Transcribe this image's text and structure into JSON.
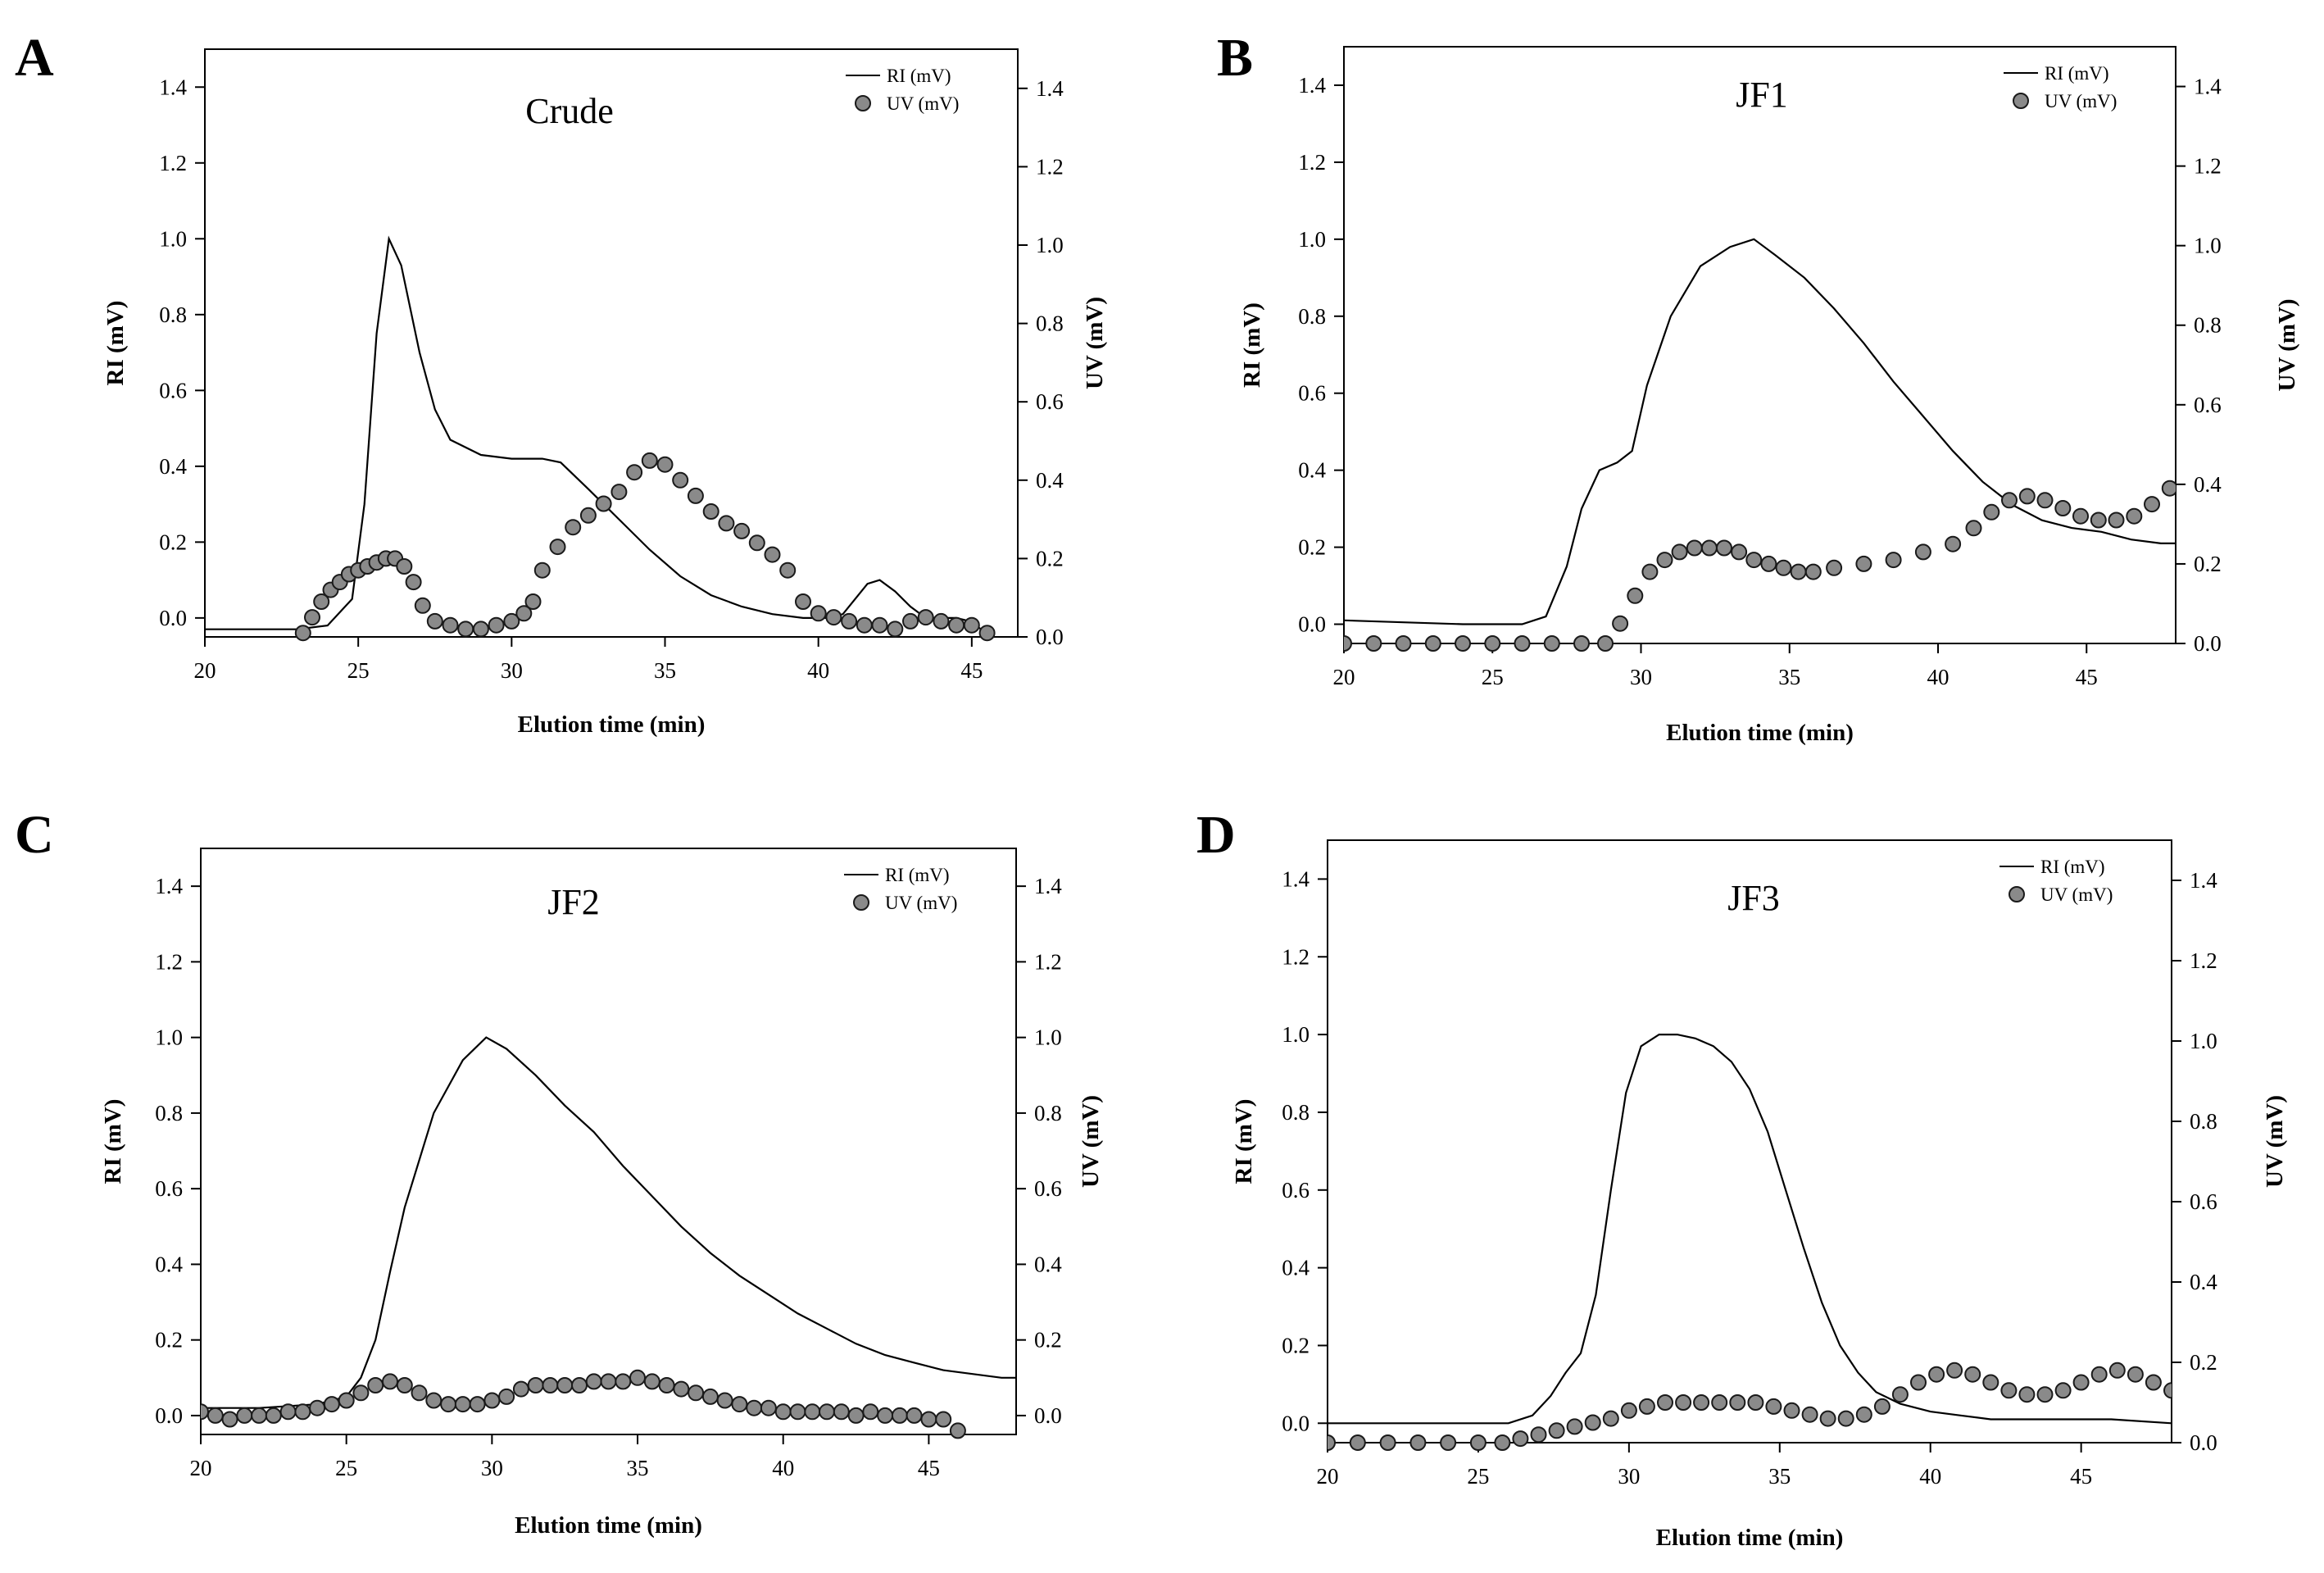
{
  "figure": {
    "legend_labels": [
      "RI (mV)",
      "UV (mV)"
    ]
  },
  "chart_data": [
    {
      "type": "line",
      "panel": "A",
      "title": "Crude",
      "xlabel": "Elution time (min)",
      "ylabel_left": "RI (mV)",
      "ylabel_right": "UV (mV)",
      "xlim": [
        20,
        46.5
      ],
      "ylim_left": [
        -0.05,
        1.5
      ],
      "ylim_right": [
        0,
        1.5
      ],
      "xticks": [
        20,
        25,
        30,
        35,
        40,
        45
      ],
      "yticks_left": [
        "0.0",
        "0.2",
        "0.4",
        "0.6",
        "0.8",
        "1.0",
        "1.2",
        "1.4"
      ],
      "yticks_right": [
        "0.0",
        "0.2",
        "0.4",
        "0.6",
        "0.8",
        "1.0",
        "1.2",
        "1.4"
      ],
      "series": [
        {
          "name": "RI (mV)",
          "style": "line",
          "axis": "left",
          "x": [
            20,
            23,
            24,
            24.8,
            25.2,
            25.6,
            26,
            26.4,
            27,
            27.5,
            28,
            29,
            30,
            31,
            31.6,
            32.5,
            33.5,
            34.5,
            35.5,
            36.5,
            37.5,
            38.5,
            39.5,
            40.3,
            40.8,
            41.2,
            41.6,
            42,
            42.5,
            43,
            43.5,
            44,
            44.5,
            45,
            45.3
          ],
          "y": [
            -0.03,
            -0.03,
            -0.02,
            0.05,
            0.3,
            0.75,
            1.0,
            0.93,
            0.7,
            0.55,
            0.47,
            0.43,
            0.42,
            0.42,
            0.41,
            0.34,
            0.26,
            0.18,
            0.11,
            0.06,
            0.03,
            0.01,
            0.0,
            0.0,
            0.01,
            0.05,
            0.09,
            0.1,
            0.07,
            0.03,
            0.0,
            0.0,
            0.0,
            -0.01,
            -0.03
          ]
        },
        {
          "name": "UV (mV)",
          "style": "markers",
          "axis": "right",
          "x": [
            23.2,
            23.5,
            23.8,
            24.1,
            24.4,
            24.7,
            25,
            25.3,
            25.6,
            25.9,
            26.2,
            26.5,
            26.8,
            27.1,
            27.5,
            28,
            28.5,
            29,
            29.5,
            30,
            30.4,
            30.7,
            31,
            31.5,
            32,
            32.5,
            33,
            33.5,
            34,
            34.5,
            35,
            35.5,
            36,
            36.5,
            37,
            37.5,
            38,
            38.5,
            39,
            39.5,
            40,
            40.5,
            41,
            41.5,
            42,
            42.5,
            43,
            43.5,
            44,
            44.5,
            45,
            45.5
          ],
          "y": [
            0.01,
            0.05,
            0.09,
            0.12,
            0.14,
            0.16,
            0.17,
            0.18,
            0.19,
            0.2,
            0.2,
            0.18,
            0.14,
            0.08,
            0.04,
            0.03,
            0.02,
            0.02,
            0.03,
            0.04,
            0.06,
            0.09,
            0.17,
            0.23,
            0.28,
            0.31,
            0.34,
            0.37,
            0.42,
            0.45,
            0.44,
            0.4,
            0.36,
            0.32,
            0.29,
            0.27,
            0.24,
            0.21,
            0.17,
            0.09,
            0.06,
            0.05,
            0.04,
            0.03,
            0.03,
            0.02,
            0.04,
            0.05,
            0.04,
            0.03,
            0.03,
            0.01
          ]
        }
      ]
    },
    {
      "type": "line",
      "panel": "B",
      "title": "JF1",
      "xlabel": "Elution time (min)",
      "ylabel_left": "RI (mV)",
      "ylabel_right": "UV (mV)",
      "xlim": [
        20,
        48
      ],
      "ylim_left": [
        -0.05,
        1.5
      ],
      "ylim_right": [
        0,
        1.5
      ],
      "xticks": [
        20,
        25,
        30,
        35,
        40,
        45
      ],
      "yticks_left": [
        "0.0",
        "0.2",
        "0.4",
        "0.6",
        "0.8",
        "1.0",
        "1.2",
        "1.4"
      ],
      "yticks_right": [
        "0.0",
        "0.2",
        "0.4",
        "0.6",
        "0.8",
        "1.0",
        "1.2",
        "1.4"
      ],
      "series": [
        {
          "name": "RI (mV)",
          "style": "line",
          "axis": "left",
          "x": [
            20,
            22,
            24,
            26,
            26.8,
            27.5,
            28,
            28.6,
            29.2,
            29.7,
            30.2,
            31,
            32,
            33,
            33.8,
            34.5,
            35.5,
            36.5,
            37.5,
            38.5,
            39.5,
            40.5,
            41.5,
            42.5,
            43.5,
            44.5,
            45.5,
            46.5,
            47.5,
            48
          ],
          "y": [
            0.01,
            0.005,
            0.0,
            0.0,
            0.02,
            0.15,
            0.3,
            0.4,
            0.42,
            0.45,
            0.62,
            0.8,
            0.93,
            0.98,
            1.0,
            0.96,
            0.9,
            0.82,
            0.73,
            0.63,
            0.54,
            0.45,
            0.37,
            0.31,
            0.27,
            0.25,
            0.24,
            0.22,
            0.21,
            0.21
          ]
        },
        {
          "name": "UV (mV)",
          "style": "markers",
          "axis": "right",
          "x": [
            20,
            21,
            22,
            23,
            24,
            25,
            26,
            27,
            28,
            28.8,
            29.3,
            29.8,
            30.3,
            30.8,
            31.3,
            31.8,
            32.3,
            32.8,
            33.3,
            33.8,
            34.3,
            34.8,
            35.3,
            35.8,
            36.5,
            37.5,
            38.5,
            39.5,
            40.5,
            41.2,
            41.8,
            42.4,
            43,
            43.6,
            44.2,
            44.8,
            45.4,
            46,
            46.6,
            47.2,
            47.8
          ],
          "y": [
            0,
            0,
            0,
            0,
            0,
            0,
            0,
            0,
            0,
            0.0,
            0.05,
            0.12,
            0.18,
            0.21,
            0.23,
            0.24,
            0.24,
            0.24,
            0.23,
            0.21,
            0.2,
            0.19,
            0.18,
            0.18,
            0.19,
            0.2,
            0.21,
            0.23,
            0.25,
            0.29,
            0.33,
            0.36,
            0.37,
            0.36,
            0.34,
            0.32,
            0.31,
            0.31,
            0.32,
            0.35,
            0.39
          ]
        }
      ]
    },
    {
      "type": "line",
      "panel": "C",
      "title": "JF2",
      "xlabel": "Elution time (min)",
      "ylabel_left": "RI (mV)",
      "ylabel_right": "UV (mV)",
      "xlim": [
        20,
        48
      ],
      "ylim_left": [
        -0.05,
        1.5
      ],
      "ylim_right": [
        -0.05,
        1.5
      ],
      "xticks": [
        20,
        25,
        30,
        35,
        40,
        45
      ],
      "yticks_left": [
        "0.0",
        "0.2",
        "0.4",
        "0.6",
        "0.8",
        "1.0",
        "1.2",
        "1.4"
      ],
      "yticks_right": [
        "0.0",
        "0.2",
        "0.4",
        "0.6",
        "0.8",
        "1.0",
        "1.2",
        "1.4"
      ],
      "series": [
        {
          "name": "RI (mV)",
          "style": "line",
          "axis": "left",
          "x": [
            20,
            22,
            24,
            25,
            25.5,
            26,
            26.5,
            27,
            28,
            29,
            29.8,
            30.5,
            31.5,
            32.5,
            33.5,
            34.5,
            35.5,
            36.5,
            37.5,
            38.5,
            39.5,
            40.5,
            41.5,
            42.5,
            43.5,
            44.5,
            45.5,
            46.5,
            47.5,
            48
          ],
          "y": [
            0.02,
            0.02,
            0.03,
            0.05,
            0.1,
            0.2,
            0.38,
            0.55,
            0.8,
            0.94,
            1.0,
            0.97,
            0.9,
            0.82,
            0.75,
            0.66,
            0.58,
            0.5,
            0.43,
            0.37,
            0.32,
            0.27,
            0.23,
            0.19,
            0.16,
            0.14,
            0.12,
            0.11,
            0.1,
            0.1
          ]
        },
        {
          "name": "UV (mV)",
          "style": "markers",
          "axis": "right",
          "x": [
            20,
            20.5,
            21,
            21.5,
            22,
            22.5,
            23,
            23.5,
            24,
            24.5,
            25,
            25.5,
            26,
            26.5,
            27,
            27.5,
            28,
            28.5,
            29,
            29.5,
            30,
            30.5,
            31,
            31.5,
            32,
            32.5,
            33,
            33.5,
            34,
            34.5,
            35,
            35.5,
            36,
            36.5,
            37,
            37.5,
            38,
            38.5,
            39,
            39.5,
            40,
            40.5,
            41,
            41.5,
            42,
            42.5,
            43,
            43.5,
            44,
            44.5,
            45,
            45.5,
            46
          ],
          "y": [
            0.01,
            0.0,
            -0.01,
            0.0,
            0.0,
            0.0,
            0.01,
            0.01,
            0.02,
            0.03,
            0.04,
            0.06,
            0.08,
            0.09,
            0.08,
            0.06,
            0.04,
            0.03,
            0.03,
            0.03,
            0.04,
            0.05,
            0.07,
            0.08,
            0.08,
            0.08,
            0.08,
            0.09,
            0.09,
            0.09,
            0.1,
            0.09,
            0.08,
            0.07,
            0.06,
            0.05,
            0.04,
            0.03,
            0.02,
            0.02,
            0.01,
            0.01,
            0.01,
            0.01,
            0.01,
            0.0,
            0.01,
            0.0,
            0.0,
            0.0,
            -0.01,
            -0.01,
            -0.04
          ]
        }
      ]
    },
    {
      "type": "line",
      "panel": "D",
      "title": "JF3",
      "xlabel": "Elution time (min)",
      "ylabel_left": "RI (mV)",
      "ylabel_right": "UV (mV)",
      "xlim": [
        20,
        48
      ],
      "ylim_left": [
        -0.05,
        1.5
      ],
      "ylim_right": [
        0,
        1.5
      ],
      "xticks": [
        20,
        25,
        30,
        35,
        40,
        45
      ],
      "yticks_left": [
        "0.0",
        "0.2",
        "0.4",
        "0.6",
        "0.8",
        "1.0",
        "1.2",
        "1.4"
      ],
      "yticks_right": [
        "0.0",
        "0.2",
        "0.4",
        "0.6",
        "0.8",
        "1.0",
        "1.2",
        "1.4"
      ],
      "series": [
        {
          "name": "RI (mV)",
          "style": "line",
          "axis": "left",
          "x": [
            20,
            24,
            26,
            26.8,
            27.4,
            27.9,
            28.4,
            28.9,
            29.4,
            29.9,
            30.4,
            31,
            31.6,
            32.2,
            32.8,
            33.4,
            34,
            34.6,
            35.2,
            35.8,
            36.4,
            37,
            37.6,
            38.2,
            39,
            40,
            41,
            42,
            43,
            44,
            46,
            48
          ],
          "y": [
            0.0,
            0.0,
            0.0,
            0.02,
            0.07,
            0.13,
            0.18,
            0.33,
            0.6,
            0.85,
            0.97,
            1.0,
            1.0,
            0.99,
            0.97,
            0.93,
            0.86,
            0.75,
            0.6,
            0.45,
            0.31,
            0.2,
            0.13,
            0.08,
            0.05,
            0.03,
            0.02,
            0.01,
            0.01,
            0.01,
            0.01,
            0.0
          ]
        },
        {
          "name": "UV (mV)",
          "style": "markers",
          "axis": "right",
          "x": [
            20,
            21,
            22,
            23,
            24,
            25,
            25.8,
            26.4,
            27,
            27.6,
            28.2,
            28.8,
            29.4,
            30,
            30.6,
            31.2,
            31.8,
            32.4,
            33,
            33.6,
            34.2,
            34.8,
            35.4,
            36,
            36.6,
            37.2,
            37.8,
            38.4,
            39,
            39.6,
            40.2,
            40.8,
            41.4,
            42,
            42.6,
            43.2,
            43.8,
            44.4,
            45,
            45.6,
            46.2,
            46.8,
            47.4,
            48
          ],
          "y": [
            0,
            0,
            0,
            0,
            0,
            0,
            0.0,
            0.01,
            0.02,
            0.03,
            0.04,
            0.05,
            0.06,
            0.08,
            0.09,
            0.1,
            0.1,
            0.1,
            0.1,
            0.1,
            0.1,
            0.09,
            0.08,
            0.07,
            0.06,
            0.06,
            0.07,
            0.09,
            0.12,
            0.15,
            0.17,
            0.18,
            0.17,
            0.15,
            0.13,
            0.12,
            0.12,
            0.13,
            0.15,
            0.17,
            0.18,
            0.17,
            0.15,
            0.13
          ]
        }
      ]
    }
  ]
}
